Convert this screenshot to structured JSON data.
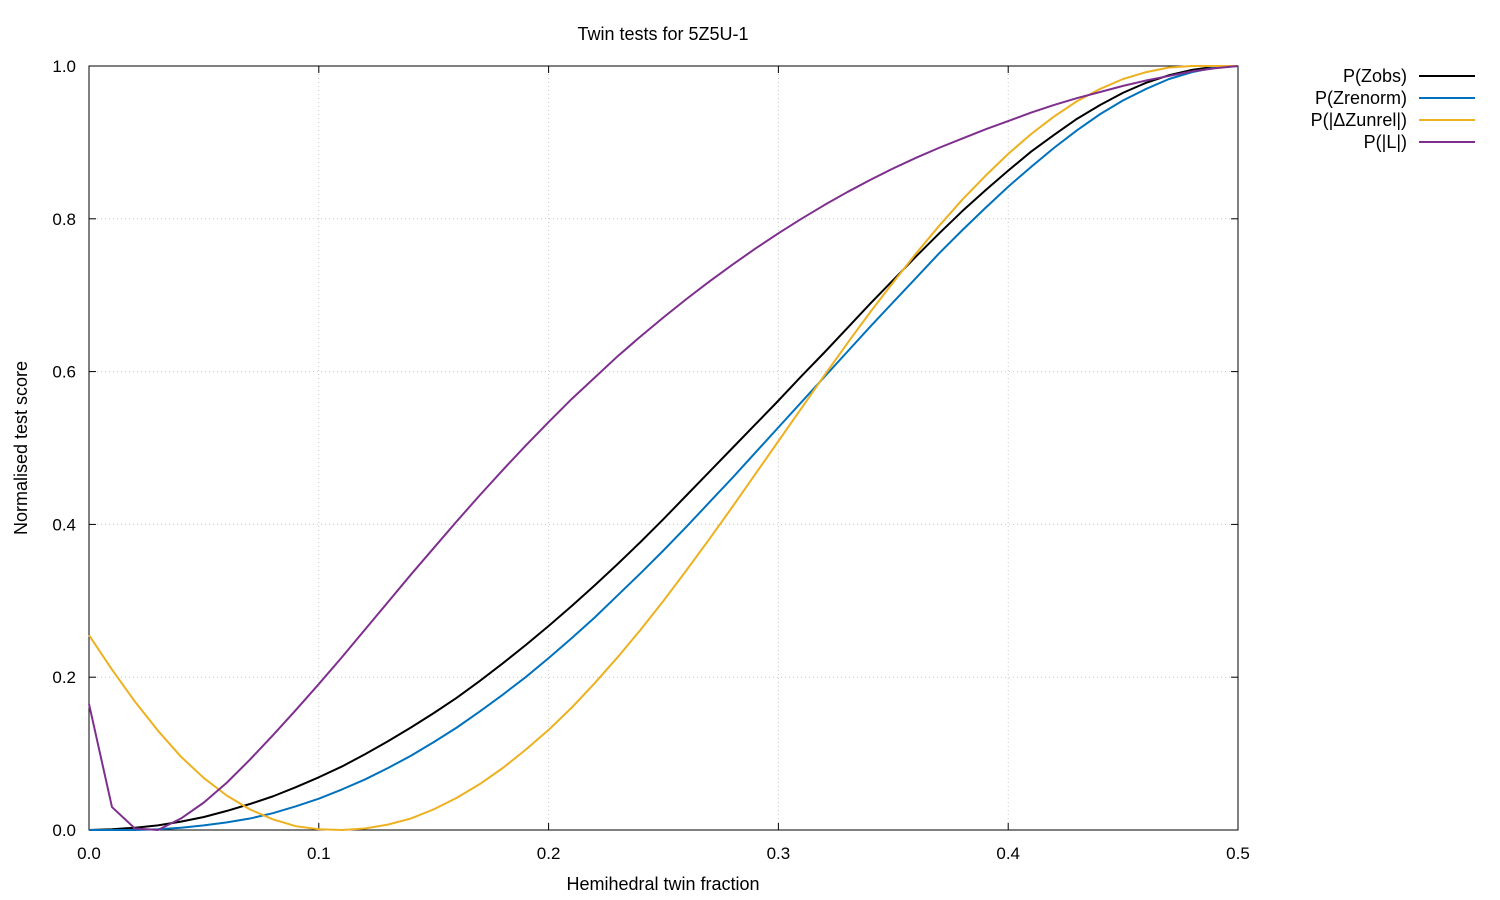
{
  "chart_data": {
    "type": "line",
    "title": "Twin tests for 5Z5U-1",
    "xlabel": "Hemihedral twin fraction",
    "ylabel": "Normalised test score",
    "xlim": [
      0.0,
      0.5
    ],
    "ylim": [
      0.0,
      1.0
    ],
    "xticks": [
      "0.0",
      "0.1",
      "0.2",
      "0.3",
      "0.4",
      "0.5"
    ],
    "yticks": [
      "0.0",
      "0.2",
      "0.4",
      "0.6",
      "0.8",
      "1.0"
    ],
    "grid": true,
    "legend_position": "top-right outside",
    "x": [
      0.0,
      0.01,
      0.02,
      0.03,
      0.04,
      0.05,
      0.06,
      0.07,
      0.08,
      0.09,
      0.1,
      0.11,
      0.12,
      0.13,
      0.14,
      0.15,
      0.16,
      0.17,
      0.18,
      0.19,
      0.2,
      0.21,
      0.22,
      0.23,
      0.24,
      0.25,
      0.26,
      0.27,
      0.28,
      0.29,
      0.3,
      0.31,
      0.32,
      0.33,
      0.34,
      0.35,
      0.36,
      0.37,
      0.38,
      0.39,
      0.4,
      0.41,
      0.42,
      0.43,
      0.44,
      0.45,
      0.46,
      0.47,
      0.48,
      0.49,
      0.5
    ],
    "series": [
      {
        "name": "P(Zobs)",
        "color": "#000000",
        "values": [
          0.0,
          0.001,
          0.003,
          0.006,
          0.011,
          0.017,
          0.025,
          0.034,
          0.044,
          0.056,
          0.069,
          0.083,
          0.099,
          0.116,
          0.134,
          0.153,
          0.173,
          0.195,
          0.218,
          0.242,
          0.267,
          0.293,
          0.32,
          0.348,
          0.377,
          0.407,
          0.438,
          0.469,
          0.5,
          0.531,
          0.562,
          0.594,
          0.625,
          0.657,
          0.689,
          0.72,
          0.751,
          0.781,
          0.81,
          0.837,
          0.863,
          0.888,
          0.91,
          0.931,
          0.949,
          0.965,
          0.978,
          0.988,
          0.995,
          0.999,
          1.0
        ]
      },
      {
        "name": "P(Zrenorm)",
        "color": "#0072bd",
        "values": [
          0.0,
          0.0,
          0.0,
          0.001,
          0.003,
          0.006,
          0.01,
          0.015,
          0.022,
          0.031,
          0.041,
          0.053,
          0.066,
          0.081,
          0.097,
          0.115,
          0.134,
          0.155,
          0.177,
          0.2,
          0.225,
          0.251,
          0.278,
          0.307,
          0.336,
          0.366,
          0.397,
          0.429,
          0.461,
          0.494,
          0.527,
          0.56,
          0.593,
          0.626,
          0.659,
          0.691,
          0.723,
          0.755,
          0.785,
          0.814,
          0.842,
          0.868,
          0.893,
          0.916,
          0.937,
          0.955,
          0.97,
          0.983,
          0.992,
          0.998,
          1.0
        ]
      },
      {
        "name": "P(|ΔZunrel|)",
        "color": "#edb120",
        "values": [
          0.255,
          0.21,
          0.168,
          0.13,
          0.096,
          0.068,
          0.045,
          0.027,
          0.014,
          0.005,
          0.001,
          0.0,
          0.002,
          0.007,
          0.015,
          0.027,
          0.042,
          0.06,
          0.081,
          0.105,
          0.131,
          0.16,
          0.192,
          0.226,
          0.262,
          0.3,
          0.34,
          0.381,
          0.423,
          0.466,
          0.509,
          0.552,
          0.595,
          0.637,
          0.678,
          0.717,
          0.755,
          0.791,
          0.825,
          0.856,
          0.885,
          0.911,
          0.934,
          0.954,
          0.97,
          0.983,
          0.992,
          0.998,
          1.0,
          1.0,
          1.0
        ]
      },
      {
        "name": "P(|L|)",
        "color": "#7e2f8e",
        "values": [
          0.165,
          0.03,
          0.002,
          0.0,
          0.015,
          0.036,
          0.062,
          0.092,
          0.124,
          0.157,
          0.191,
          0.226,
          0.262,
          0.298,
          0.334,
          0.369,
          0.404,
          0.438,
          0.471,
          0.503,
          0.534,
          0.564,
          0.592,
          0.62,
          0.646,
          0.671,
          0.695,
          0.718,
          0.74,
          0.761,
          0.781,
          0.8,
          0.818,
          0.835,
          0.851,
          0.866,
          0.88,
          0.893,
          0.905,
          0.917,
          0.928,
          0.939,
          0.949,
          0.958,
          0.966,
          0.974,
          0.981,
          0.987,
          0.993,
          0.997,
          1.0
        ]
      }
    ]
  }
}
